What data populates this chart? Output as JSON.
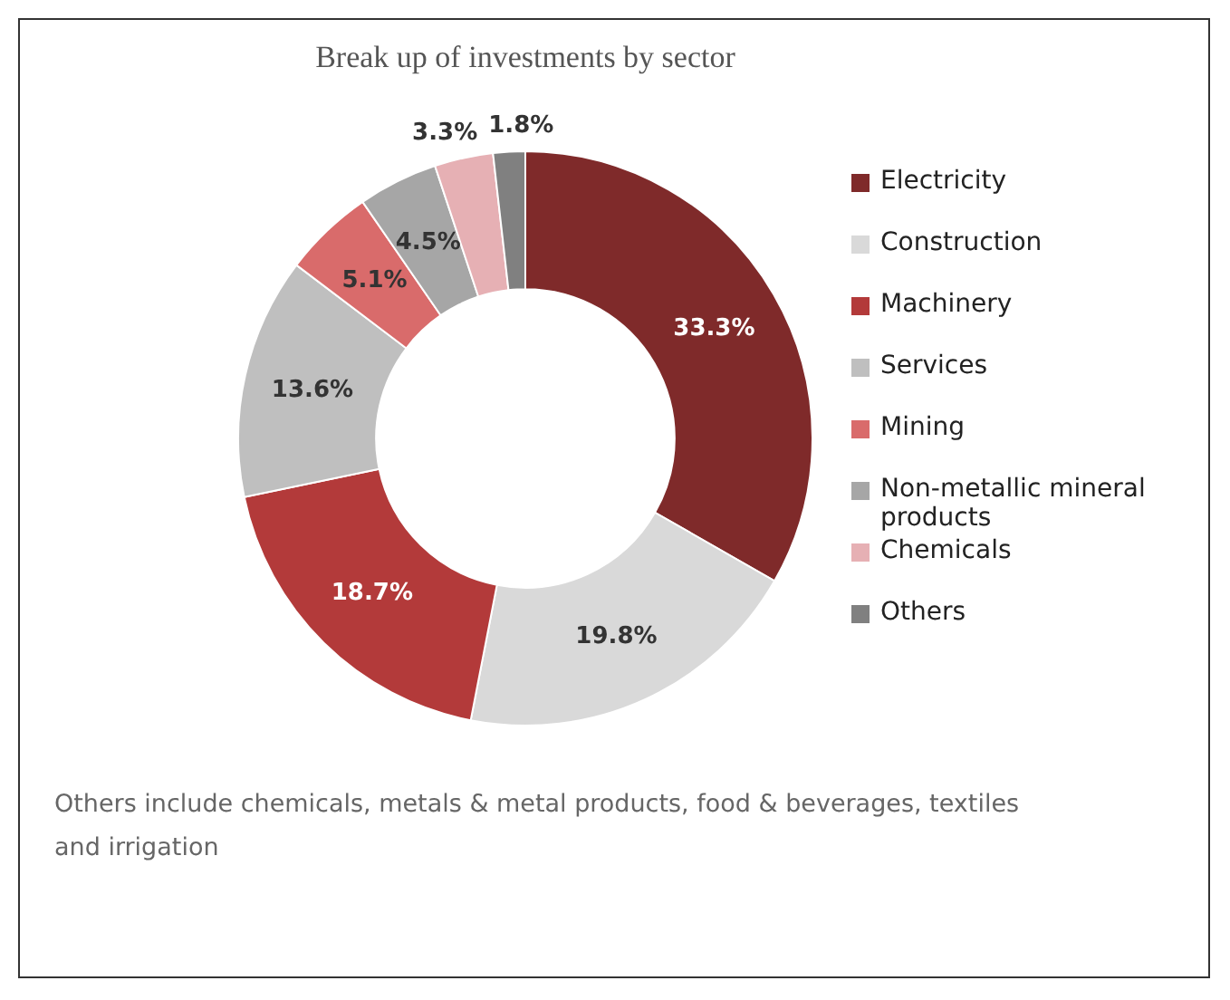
{
  "chart_data": {
    "type": "donut",
    "title": "Break up of investments by sector",
    "categories": [
      "Electricity",
      "Construction",
      "Machinery",
      "Services",
      "Mining",
      "Non-metallic mineral products",
      "Chemicals",
      "Others"
    ],
    "values": [
      33.3,
      19.8,
      18.7,
      13.6,
      5.1,
      4.5,
      3.3,
      1.8
    ],
    "value_labels": [
      "33.3%",
      "19.8%",
      "18.7%",
      "13.6%",
      "5.1%",
      "4.5%",
      "3.3%",
      "1.8%"
    ],
    "colors": [
      "#7f2a2a",
      "#d9d9d9",
      "#b33a3a",
      "#bfbfbf",
      "#d96b6b",
      "#a6a6a6",
      "#e6b0b4",
      "#808080"
    ],
    "legend": "right",
    "annotations": [
      "Others include chemicals, metals & metal products, food & beverages, textiles and irrigation"
    ]
  }
}
